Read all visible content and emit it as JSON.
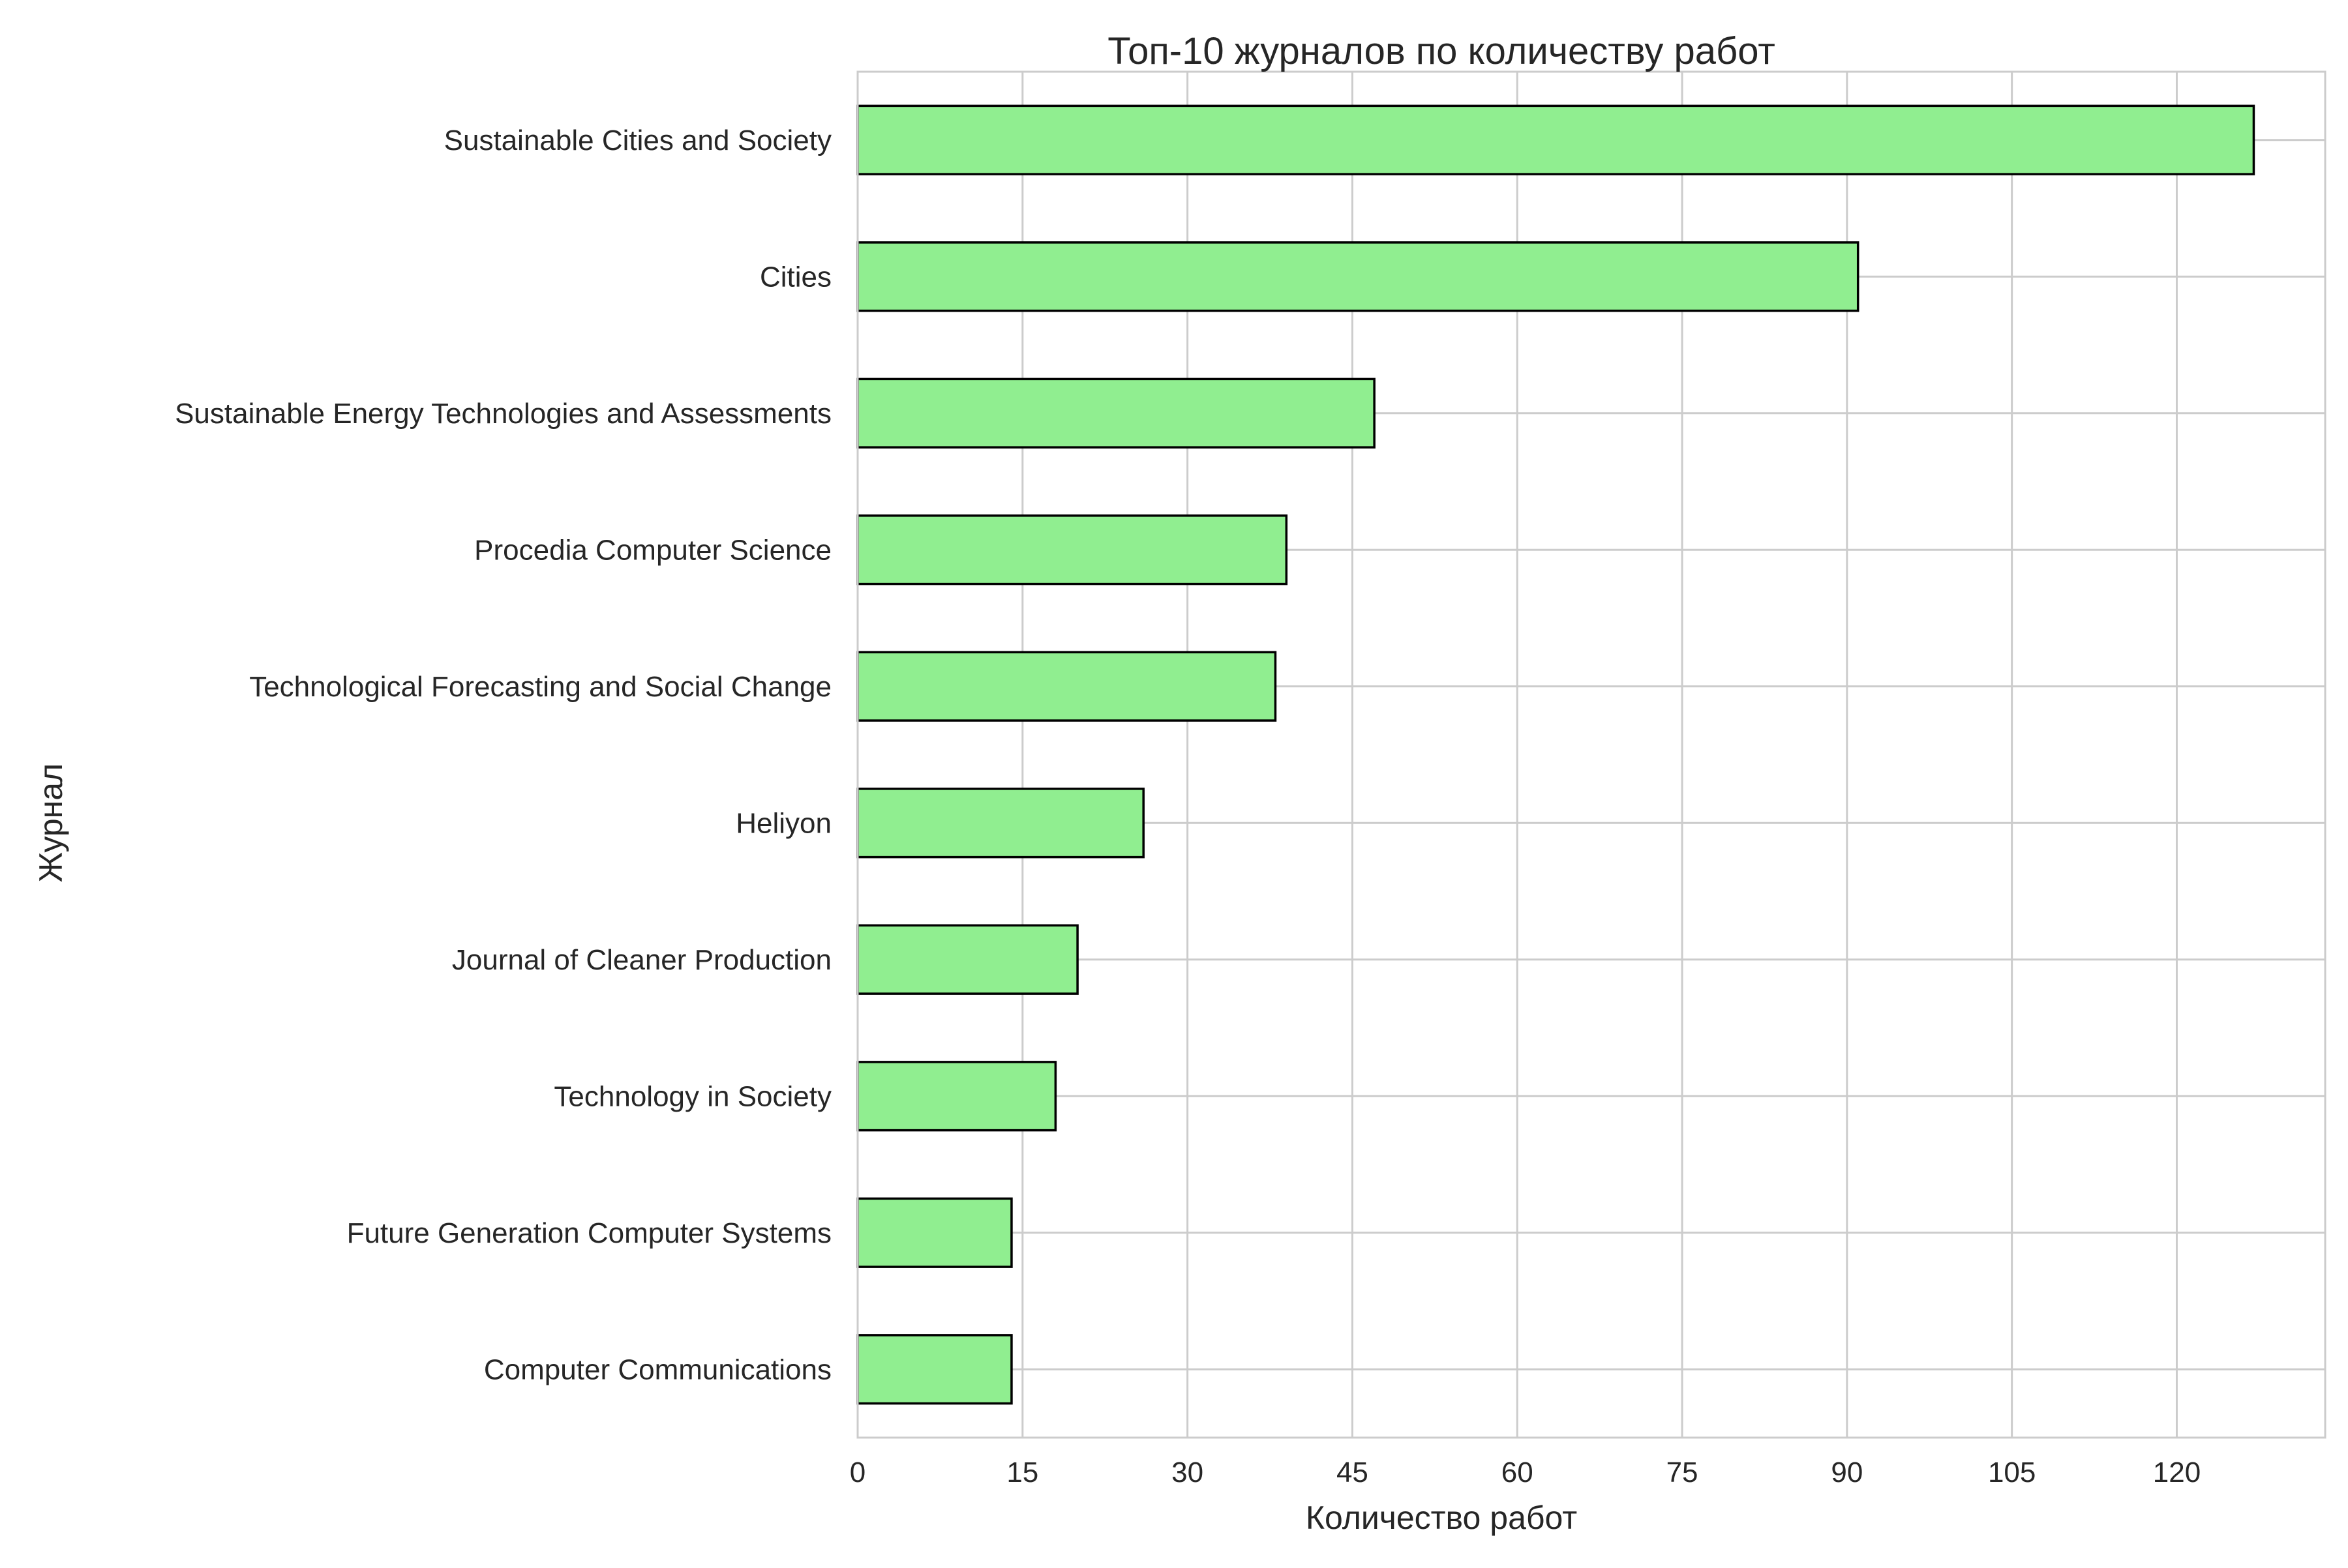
{
  "chart_data": {
    "type": "bar",
    "orientation": "horizontal",
    "title": "Топ-10 журналов по количеству работ",
    "xlabel": "Количество работ",
    "ylabel": "Журнал",
    "xlim": [
      0,
      133.5
    ],
    "xticks": [
      0,
      15,
      30,
      45,
      60,
      75,
      90,
      105,
      120
    ],
    "grid": true,
    "bar_color": "#90ee90",
    "edge_color": "#000000",
    "categories": [
      "Sustainable Cities and Society",
      "Cities",
      "Sustainable Energy Technologies and Assessments",
      "Procedia Computer Science",
      "Technological Forecasting and Social Change",
      "Heliyon",
      "Journal of Cleaner Production",
      "Technology in Society",
      "Future Generation Computer Systems",
      "Computer Communications"
    ],
    "values": [
      127,
      91,
      47,
      39,
      38,
      26,
      20,
      18,
      14,
      14
    ]
  }
}
